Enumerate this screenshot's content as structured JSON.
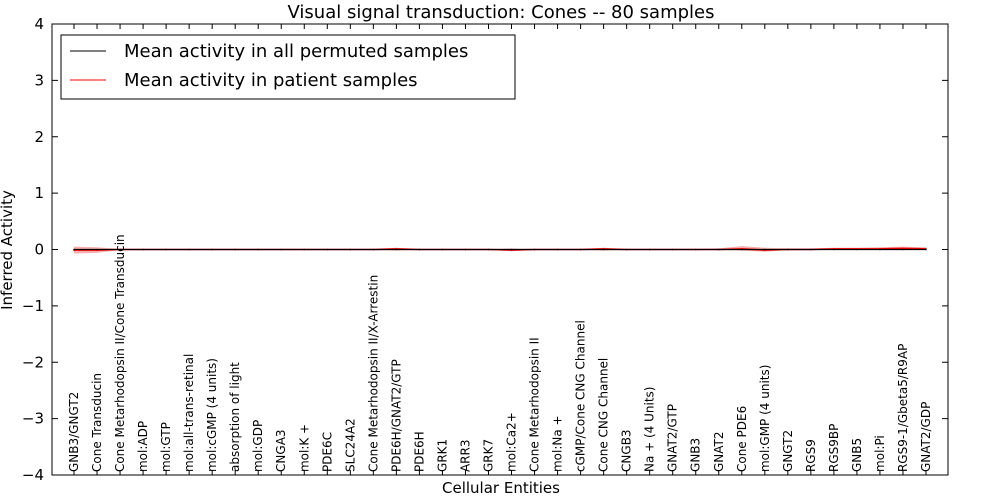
{
  "chart_data": {
    "type": "line",
    "title": "Visual signal transduction: Cones -- 80 samples",
    "xlabel": "Cellular Entities",
    "ylabel": "Inferred Activity",
    "ylim": [
      -4,
      4
    ],
    "yticks": [
      -4,
      -3,
      -2,
      -1,
      0,
      1,
      2,
      3,
      4
    ],
    "ytick_labels": [
      "−4",
      "−3",
      "−2",
      "−1",
      "0",
      "1",
      "2",
      "3",
      "4"
    ],
    "legend_position": "top-left",
    "categories": [
      "GNB3/GNGT2",
      "Cone Transducin",
      "Cone Metarhodopsin II/Cone Transducin",
      "mol:ADP",
      "mol:GTP",
      "mol:all-trans-retinal",
      "mol:cGMP (4 units)",
      "absorption of light",
      "mol:GDP",
      "CNGA3",
      "mol:K +",
      "PDE6C",
      "SLC24A2",
      "Cone Metarhodopsin II/X-Arrestin",
      "PDE6H/GNAT2/GTP",
      "PDE6H",
      "GRK1",
      "ARR3",
      "GRK7",
      "mol:Ca2+",
      "Cone Metarhodopsin II",
      "mol:Na +",
      "cGMP/Cone CNG Channel",
      "Cone CNG Channel",
      "CNGB3",
      "Na + (4 Units)",
      "GNAT2/GTP",
      "GNB3",
      "GNAT2",
      "Cone PDE6",
      "mol:GMP (4 units)",
      "GNGT2",
      "RGS9",
      "RGS9BP",
      "GNB5",
      "mol:Pi",
      "RGS9-1/Gbeta5/R9AP",
      "GNAT2/GDP"
    ],
    "series": [
      {
        "name": "Mean activity in all permuted samples",
        "color": "#000000",
        "values": [
          0,
          0,
          0,
          0,
          0,
          0,
          0,
          0,
          0,
          0,
          0,
          0,
          0,
          0,
          0,
          0,
          0,
          0,
          0,
          0,
          0,
          0,
          0,
          0,
          0,
          0,
          0,
          0,
          0,
          0,
          0,
          0,
          0,
          0,
          0,
          0,
          0,
          0
        ]
      },
      {
        "name": "Mean activity in patient samples",
        "color": "#ff0000",
        "values": [
          -0.01,
          -0.01,
          0.0,
          0.0,
          0.0,
          0.0,
          0.0,
          0.0,
          0.0,
          0.0,
          0.0,
          0.0,
          0.0,
          0.0,
          0.01,
          0.0,
          0.0,
          0.0,
          0.0,
          -0.01,
          0.0,
          0.0,
          0.0,
          0.01,
          0.0,
          0.0,
          0.0,
          0.0,
          0.0,
          0.01,
          -0.01,
          0.0,
          0.0,
          0.01,
          0.01,
          0.01,
          0.02,
          0.01
        ],
        "band_lower": [
          -0.07,
          -0.06,
          -0.01,
          -0.01,
          -0.01,
          -0.01,
          -0.01,
          -0.01,
          -0.01,
          -0.01,
          -0.01,
          -0.01,
          -0.01,
          -0.01,
          -0.02,
          -0.01,
          -0.01,
          -0.01,
          -0.01,
          -0.03,
          -0.01,
          -0.01,
          -0.01,
          -0.02,
          -0.01,
          -0.01,
          -0.01,
          -0.01,
          -0.01,
          -0.02,
          -0.04,
          -0.01,
          -0.01,
          -0.01,
          -0.01,
          -0.01,
          -0.01,
          -0.01
        ],
        "band_upper": [
          0.05,
          0.04,
          0.01,
          0.01,
          0.01,
          0.01,
          0.01,
          0.01,
          0.01,
          0.01,
          0.01,
          0.01,
          0.01,
          0.01,
          0.03,
          0.01,
          0.01,
          0.01,
          0.01,
          0.02,
          0.01,
          0.01,
          0.01,
          0.03,
          0.01,
          0.01,
          0.01,
          0.01,
          0.02,
          0.06,
          0.03,
          0.02,
          0.02,
          0.03,
          0.03,
          0.04,
          0.05,
          0.04
        ],
        "band_color": "#f4a0a0"
      }
    ]
  }
}
